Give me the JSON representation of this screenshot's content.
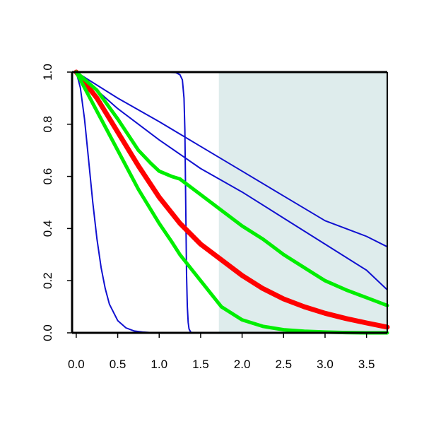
{
  "chart_data": {
    "type": "line",
    "title": "",
    "xlabel": "",
    "ylabel": "",
    "xlim": [
      -0.05,
      3.75
    ],
    "ylim": [
      0.0,
      1.0
    ],
    "x_ticks": [
      0.0,
      0.5,
      1.0,
      1.5,
      2.0,
      2.5,
      3.0,
      3.5
    ],
    "x_tick_labels": [
      "0.0",
      "0.5",
      "1.0",
      "1.5",
      "2.0",
      "2.5",
      "3.0",
      "3.5"
    ],
    "y_ticks": [
      0.0,
      0.2,
      0.4,
      0.6,
      0.8,
      1.0
    ],
    "y_tick_labels": [
      "0.0",
      "0.2",
      "0.4",
      "0.6",
      "0.8",
      "1.0"
    ],
    "grid": false,
    "legend": "none",
    "shaded_region": {
      "x_from": 1.72,
      "x_to": 3.75,
      "y_from": 0.0,
      "y_to": 1.0,
      "color": "#deecec"
    },
    "series": [
      {
        "color": "#1010d0",
        "weight": "thin",
        "x": [
          0.0,
          0.05,
          0.1,
          0.15,
          0.2,
          0.25,
          0.3,
          0.35,
          0.4,
          0.5,
          0.6,
          0.7,
          0.8,
          0.9,
          1.0,
          1.2,
          1.5,
          2.0,
          3.75
        ],
        "y": [
          1.0,
          0.94,
          0.82,
          0.66,
          0.5,
          0.36,
          0.25,
          0.17,
          0.11,
          0.047,
          0.019,
          0.007,
          0.003,
          0.001,
          0.0,
          0.0,
          0.0,
          0.0,
          0.0
        ]
      },
      {
        "color": "#1010d0",
        "weight": "thin",
        "x": [
          0.0,
          0.6,
          1.0,
          1.2,
          1.25,
          1.28,
          1.3,
          1.31,
          1.32,
          1.33,
          1.34,
          1.35,
          1.36,
          1.38,
          1.4,
          1.5,
          2.0,
          3.75
        ],
        "y": [
          1.0,
          1.0,
          1.0,
          0.998,
          0.99,
          0.97,
          0.9,
          0.78,
          0.5,
          0.22,
          0.1,
          0.04,
          0.015,
          0.003,
          0.0,
          0.0,
          0.0,
          0.0
        ]
      },
      {
        "color": "#1010d0",
        "weight": "thin",
        "x": [
          0.0,
          0.5,
          1.0,
          1.5,
          2.0,
          2.5,
          3.0,
          3.5,
          3.75
        ],
        "y": [
          1.0,
          0.86,
          0.74,
          0.63,
          0.54,
          0.44,
          0.34,
          0.24,
          0.165
        ]
      },
      {
        "color": "#1010d0",
        "weight": "thin",
        "x": [
          0.0,
          0.5,
          1.0,
          1.5,
          2.0,
          2.5,
          3.0,
          3.5,
          3.75
        ],
        "y": [
          1.0,
          0.9,
          0.81,
          0.715,
          0.62,
          0.525,
          0.43,
          0.37,
          0.33
        ]
      },
      {
        "color": "#ff0000",
        "weight": "thick",
        "x": [
          0.0,
          0.25,
          0.5,
          0.75,
          1.0,
          1.25,
          1.5,
          1.75,
          2.0,
          2.25,
          2.5,
          2.75,
          3.0,
          3.25,
          3.5,
          3.75
        ],
        "y": [
          1.0,
          0.9,
          0.77,
          0.64,
          0.52,
          0.42,
          0.34,
          0.28,
          0.22,
          0.17,
          0.13,
          0.1,
          0.075,
          0.055,
          0.038,
          0.022
        ]
      },
      {
        "color": "#00ee00",
        "weight": "medium",
        "x": [
          0.0,
          0.25,
          0.5,
          0.75,
          0.9,
          1.0,
          1.15,
          1.25,
          1.5,
          1.75,
          2.0,
          2.25,
          2.5,
          2.75,
          3.0,
          3.25,
          3.5,
          3.75
        ],
        "y": [
          1.0,
          0.93,
          0.82,
          0.7,
          0.65,
          0.62,
          0.6,
          0.59,
          0.53,
          0.47,
          0.41,
          0.36,
          0.3,
          0.25,
          0.2,
          0.165,
          0.135,
          0.105
        ]
      },
      {
        "color": "#00ee00",
        "weight": "medium",
        "x": [
          0.0,
          0.25,
          0.5,
          0.75,
          1.0,
          1.15,
          1.25,
          1.35,
          1.5,
          1.65,
          1.75,
          2.0,
          2.25,
          2.5,
          2.75,
          3.0,
          3.25,
          3.5,
          3.75
        ],
        "y": [
          1.0,
          0.85,
          0.7,
          0.55,
          0.42,
          0.35,
          0.3,
          0.26,
          0.2,
          0.14,
          0.1,
          0.05,
          0.025,
          0.012,
          0.006,
          0.003,
          0.001,
          0.0,
          0.0
        ]
      }
    ]
  }
}
